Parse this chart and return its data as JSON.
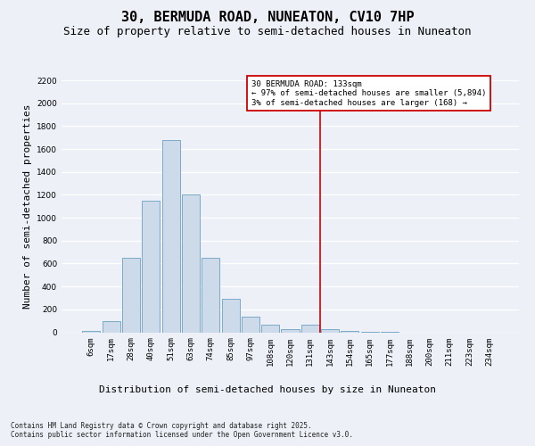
{
  "title1": "30, BERMUDA ROAD, NUNEATON, CV10 7HP",
  "title2": "Size of property relative to semi-detached houses in Nuneaton",
  "xlabel": "Distribution of semi-detached houses by size in Nuneaton",
  "ylabel": "Number of semi-detached properties",
  "bar_labels": [
    "6sqm",
    "17sqm",
    "28sqm",
    "40sqm",
    "51sqm",
    "63sqm",
    "74sqm",
    "85sqm",
    "97sqm",
    "108sqm",
    "120sqm",
    "131sqm",
    "143sqm",
    "154sqm",
    "165sqm",
    "177sqm",
    "188sqm",
    "200sqm",
    "211sqm",
    "223sqm",
    "234sqm"
  ],
  "bar_values": [
    15,
    100,
    650,
    1150,
    1680,
    1200,
    650,
    290,
    140,
    70,
    30,
    70,
    30,
    15,
    5,
    2,
    0,
    0,
    0,
    0,
    0
  ],
  "bar_color": "#cddaea",
  "bar_edge_color": "#7aaac8",
  "vline_pos": 11.5,
  "vline_color": "#cc0000",
  "annotation_text": "30 BERMUDA ROAD: 133sqm\n← 97% of semi-detached houses are smaller (5,894)\n3% of semi-detached houses are larger (168) →",
  "annotation_box_color": "#ffffff",
  "annotation_box_edge": "#cc0000",
  "ylim": [
    0,
    2200
  ],
  "yticks": [
    0,
    200,
    400,
    600,
    800,
    1000,
    1200,
    1400,
    1600,
    1800,
    2000,
    2200
  ],
  "footnote1": "Contains HM Land Registry data © Crown copyright and database right 2025.",
  "footnote2": "Contains public sector information licensed under the Open Government Licence v3.0.",
  "background_color": "#edf1f7",
  "grid_color": "#ffffff",
  "title1_fontsize": 11,
  "title2_fontsize": 9,
  "tick_fontsize": 6.5,
  "ylabel_fontsize": 8,
  "xlabel_fontsize": 8,
  "footnote_fontsize": 5.5,
  "annot_fontsize": 6.5
}
